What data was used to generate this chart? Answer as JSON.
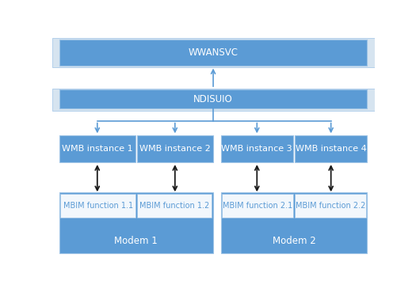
{
  "background_color": "#ffffff",
  "box_color_dark": "#5b9bd5",
  "box_color_light": "#dae3f3",
  "box_color_stripe": "#d6e4f0",
  "box_color_white": "#f2f7fc",
  "text_color_dark": "#ffffff",
  "text_color_blue": "#5b9bd5",
  "border_color": "#9dc3e6",
  "arrow_color_blue": "#5b9bd5",
  "arrow_color_black": "#1a1a1a",
  "wwansvc_label": "WWANSVC",
  "ndis_label": "NDISUIO",
  "wmb1_label": "WMB instance 1",
  "wmb2_label": "WMB instance 2",
  "wmb3_label": "WMB instance 3",
  "wmb4_label": "WMB instance 4",
  "mbim11_label": "MBIM function 1.1",
  "mbim12_label": "MBIM function 1.2",
  "mbim21_label": "MBIM function 2.1",
  "mbim22_label": "MBIM function 2.2",
  "modem1_label": "Modem 1",
  "modem2_label": "Modem 2",
  "font_size": 8.5
}
